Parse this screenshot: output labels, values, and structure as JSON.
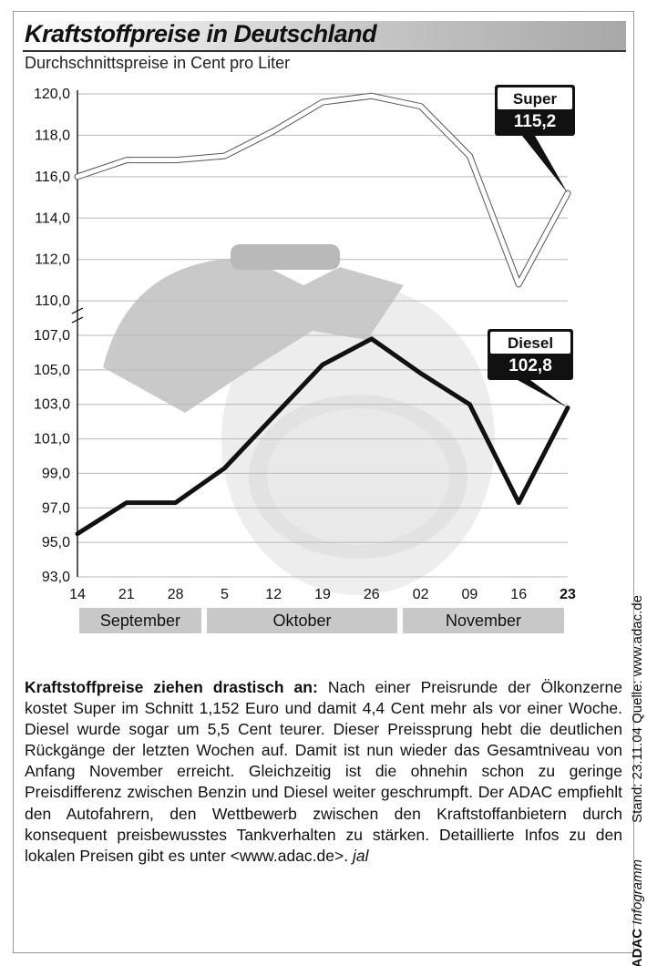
{
  "title": "Kraftstoffpreise in Deutschland",
  "subtitle": "Durchschnittspreise in Cent pro Liter",
  "source_line": "Stand: 23.11.04    Quelle: www.adac.de",
  "brand_name": "ADAC",
  "brand_suffix": "Infogramm",
  "chart": {
    "type": "line",
    "y_ticks": [
      93.0,
      95.0,
      97.0,
      99.0,
      101.0,
      103.0,
      105.0,
      107.0,
      110.0,
      112.0,
      114.0,
      116.0,
      118.0,
      120.0
    ],
    "y_tick_labels": [
      "93,0",
      "95,0",
      "97,0",
      "99,0",
      "101,0",
      "103,0",
      "105,0",
      "107,0",
      "110,0",
      "112,0",
      "114,0",
      "116,0",
      "118,0",
      "120,0"
    ],
    "y_break_between": [
      107.0,
      110.0
    ],
    "x_ticks": [
      "14",
      "21",
      "28",
      "5",
      "12",
      "19",
      "26",
      "02",
      "09",
      "16",
      "23"
    ],
    "x_bold_index": 10,
    "month_bands": [
      {
        "label": "September",
        "start_idx": 0,
        "end_idx": 2.6
      },
      {
        "label": "Oktober",
        "start_idx": 2.6,
        "end_idx": 6.6
      },
      {
        "label": "November",
        "start_idx": 6.6,
        "end_idx": 10
      }
    ],
    "series": {
      "super": {
        "label": "Super",
        "value_label": "115,2",
        "stroke": "#ffffff",
        "outline": "#555555",
        "stroke_width": 5,
        "points_y": [
          116.0,
          116.8,
          116.8,
          117.0,
          118.2,
          119.6,
          119.9,
          119.4,
          117.0,
          110.8,
          115.2
        ]
      },
      "diesel": {
        "label": "Diesel",
        "value_label": "102,8",
        "stroke": "#111111",
        "stroke_width": 5,
        "points_y": [
          95.5,
          97.3,
          97.3,
          99.3,
          102.3,
          105.3,
          106.8,
          104.8,
          103.0,
          97.3,
          102.8
        ]
      }
    },
    "grid_color": "#b8b8b8",
    "axis_color": "#111111",
    "background": "#ffffff",
    "tick_fontsize": 16
  },
  "body": {
    "lead": "Kraftstoffpreise ziehen drastisch an:",
    "text": "Nach einer Preisrunde der Ölkonzerne kostet Super im Schnitt 1,152 Euro und damit 4,4 Cent mehr als vor einer Woche. Diesel wurde sogar um 5,5 Cent teurer. Dieser Preissprung hebt die deutlichen Rückgänge der letzten Wochen auf. Damit ist nun wieder das Gesamtniveau von Anfang November erreicht. Gleichzeitig ist die ohnehin schon zu geringe Preisdifferenz zwischen Benzin und Diesel weiter geschrumpft. Der ADAC empfiehlt den Autofahrern, den Wettbewerb zwischen den Kraftstoffanbietern durch konsequent preisbewusstes Tankverhalten zu stärken. Detaillierte Infos zu den lokalen Preisen gibt es unter <www.adac.de>.",
    "signature": "jal"
  }
}
